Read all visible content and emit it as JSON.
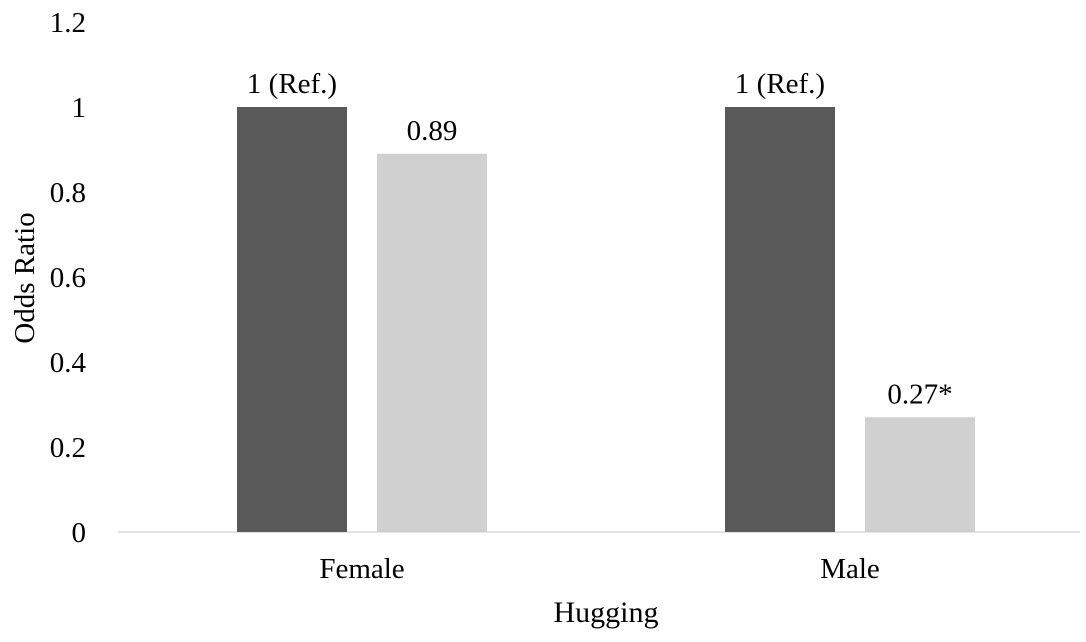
{
  "chart_data": {
    "type": "bar",
    "title": "",
    "xlabel": "Hugging",
    "ylabel": "Odds Ratio",
    "ylim": [
      0,
      1.2
    ],
    "yticks": [
      "0",
      "0.2",
      "0.4",
      "0.6",
      "0.8",
      "1",
      "1.2"
    ],
    "ytick_values": [
      0,
      0.2,
      0.4,
      0.6,
      0.8,
      1.0,
      1.2
    ],
    "categories": [
      "Female",
      "Male"
    ],
    "series": [
      {
        "values": [
          1.0,
          1.0
        ],
        "labels": [
          "1 (Ref.)",
          "1 (Ref.)"
        ],
        "color": "#595959"
      },
      {
        "values": [
          0.89,
          0.27
        ],
        "labels": [
          "0.89",
          "0.27*"
        ],
        "color": "#d0d0d0"
      }
    ],
    "grid": false,
    "legend": "none"
  }
}
